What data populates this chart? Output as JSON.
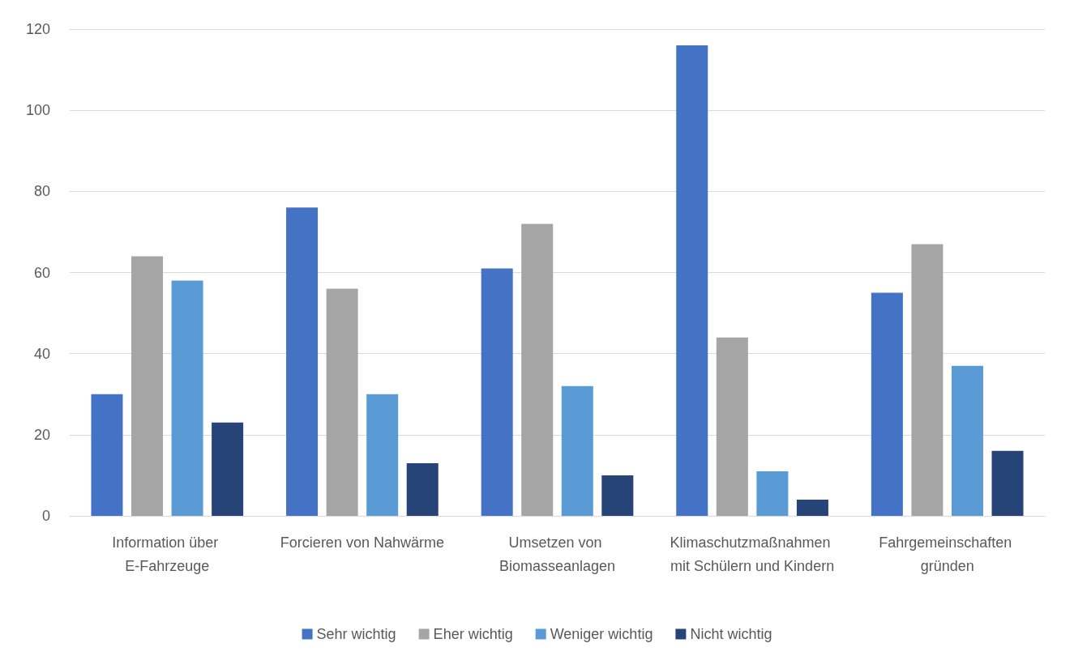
{
  "chart_data": {
    "type": "bar",
    "categories": [
      "Information über E-Fahrzeuge",
      "Forcieren von Nahwärme",
      "Umsetzen von Biomasseanlagen",
      "Klimaschutzmaßnahmen mit Schülern und Kindern",
      "Fahrgemeinschaften gründen"
    ],
    "series": [
      {
        "name": "Sehr wichtig",
        "color": "#4472c4",
        "values": [
          30,
          76,
          61,
          116,
          55
        ]
      },
      {
        "name": "Eher wichtig",
        "color": "#a5a5a5",
        "values": [
          64,
          56,
          72,
          44,
          67
        ]
      },
      {
        "name": "Weniger wichtig",
        "color": "#5b9bd5",
        "values": [
          58,
          30,
          32,
          11,
          37
        ]
      },
      {
        "name": "Nicht wichtig",
        "color": "#264478",
        "values": [
          23,
          13,
          10,
          4,
          16
        ]
      }
    ],
    "ylim": [
      0,
      120
    ],
    "yticks": [
      0,
      20,
      40,
      60,
      80,
      100,
      120
    ],
    "grid": "y",
    "legend": "bottom"
  }
}
